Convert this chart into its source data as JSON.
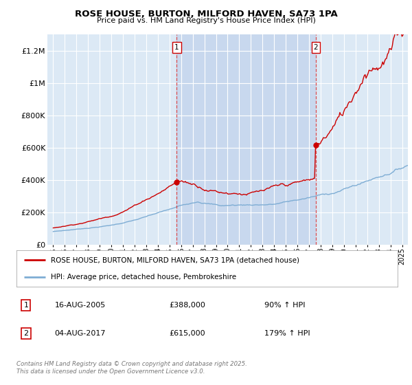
{
  "title": "ROSE HOUSE, BURTON, MILFORD HAVEN, SA73 1PA",
  "subtitle": "Price paid vs. HM Land Registry's House Price Index (HPI)",
  "ylim": [
    0,
    1300000
  ],
  "yticks": [
    0,
    200000,
    400000,
    600000,
    800000,
    1000000,
    1200000
  ],
  "ytick_labels": [
    "£0",
    "£200K",
    "£400K",
    "£600K",
    "£800K",
    "£1M",
    "£1.2M"
  ],
  "xlim_start": 1994.5,
  "xlim_end": 2025.5,
  "background_color": "#ffffff",
  "plot_bg_color": "#dce9f5",
  "highlight_color": "#c8d8ee",
  "grid_color": "#ffffff",
  "red_line_color": "#cc0000",
  "blue_line_color": "#7eadd4",
  "sale1_x": 2005.617,
  "sale1_y": 388000,
  "sale2_x": 2017.589,
  "sale2_y": 615000,
  "legend_red_label": "ROSE HOUSE, BURTON, MILFORD HAVEN, SA73 1PA (detached house)",
  "legend_blue_label": "HPI: Average price, detached house, Pembrokeshire",
  "annotation1_label": "1",
  "annotation1_date": "16-AUG-2005",
  "annotation1_price": "£388,000",
  "annotation1_hpi": "90% ↑ HPI",
  "annotation2_label": "2",
  "annotation2_date": "04-AUG-2017",
  "annotation2_price": "£615,000",
  "annotation2_hpi": "179% ↑ HPI",
  "footer": "Contains HM Land Registry data © Crown copyright and database right 2025.\nThis data is licensed under the Open Government Licence v3.0."
}
